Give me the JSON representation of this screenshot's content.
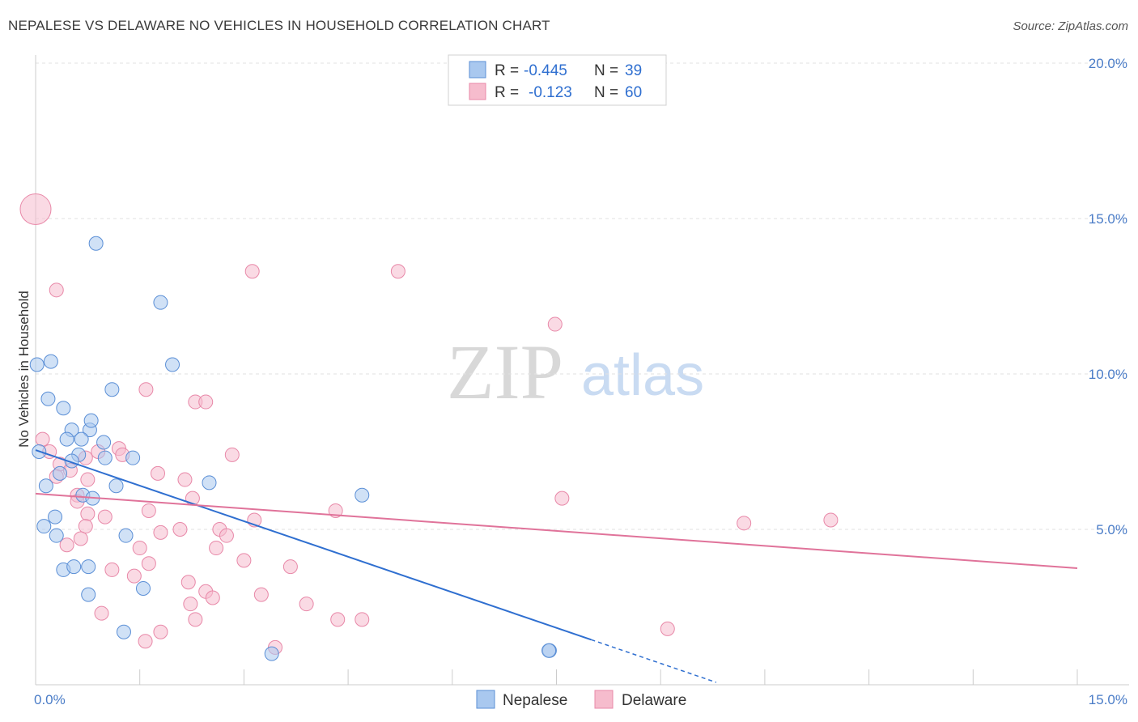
{
  "title": "NEPALESE VS DELAWARE NO VEHICLES IN HOUSEHOLD CORRELATION CHART",
  "source": "Source: ZipAtlas.com",
  "watermark": {
    "zip": "ZIP",
    "atlas": "atlas"
  },
  "colors": {
    "nepalese_fill": "#a9c8ef",
    "nepalese_stroke": "#5b8fd6",
    "nepalese_line": "#2f6fd0",
    "delaware_fill": "#f6bccd",
    "delaware_stroke": "#e888a8",
    "delaware_line": "#e0739a",
    "tick_label": "#4a7cc7"
  },
  "stats": {
    "nepalese": {
      "r_label": "R =",
      "r_value": "-0.445",
      "n_label": "N =",
      "n_value": "39"
    },
    "delaware": {
      "r_label": "R =",
      "r_value": "-0.123",
      "n_label": "N =",
      "n_value": "60"
    }
  },
  "chart_data": {
    "type": "scatter",
    "title": "NEPALESE VS DELAWARE NO VEHICLES IN HOUSEHOLD CORRELATION CHART",
    "xlabel": "",
    "ylabel": "No Vehicles in Household",
    "xlim": [
      0,
      15
    ],
    "ylim": [
      0,
      20
    ],
    "y_ticks": [
      {
        "value": 5,
        "label": "5.0%"
      },
      {
        "value": 10,
        "label": "10.0%"
      },
      {
        "value": 15,
        "label": "15.0%"
      },
      {
        "value": 20,
        "label": "20.0%"
      }
    ],
    "x_tick_labels": [
      {
        "value": 0,
        "label": "0.0%"
      },
      {
        "value": 15,
        "label": "15.0%"
      }
    ],
    "grid": true,
    "legend": [
      "Nepalese",
      "Delaware"
    ],
    "series": [
      {
        "name": "Nepalese",
        "points": [
          [
            0.02,
            10.3
          ],
          [
            0.22,
            10.4
          ],
          [
            0.05,
            7.5
          ],
          [
            0.18,
            9.2
          ],
          [
            0.4,
            8.9
          ],
          [
            0.52,
            8.2
          ],
          [
            0.78,
            8.2
          ],
          [
            0.8,
            8.5
          ],
          [
            0.45,
            7.9
          ],
          [
            0.98,
            7.8
          ],
          [
            1.1,
            9.5
          ],
          [
            0.62,
            7.4
          ],
          [
            0.52,
            7.2
          ],
          [
            1.0,
            7.3
          ],
          [
            0.35,
            6.8
          ],
          [
            0.15,
            6.4
          ],
          [
            0.68,
            6.1
          ],
          [
            1.16,
            6.4
          ],
          [
            0.82,
            6.0
          ],
          [
            0.28,
            5.4
          ],
          [
            0.12,
            5.1
          ],
          [
            0.3,
            4.8
          ],
          [
            1.3,
            4.8
          ],
          [
            0.4,
            3.7
          ],
          [
            0.55,
            3.8
          ],
          [
            0.76,
            3.8
          ],
          [
            1.55,
            3.1
          ],
          [
            0.76,
            2.9
          ],
          [
            1.27,
            1.7
          ],
          [
            0.87,
            14.2
          ],
          [
            1.8,
            12.3
          ],
          [
            1.97,
            10.3
          ],
          [
            2.5,
            6.5
          ],
          [
            4.7,
            6.1
          ],
          [
            3.4,
            1.0
          ],
          [
            7.4,
            1.1
          ],
          [
            7.39,
            1.1
          ],
          [
            0.66,
            7.9
          ],
          [
            1.4,
            7.3
          ]
        ]
      },
      {
        "name": "Delaware",
        "points": [
          [
            0.0,
            15.3
          ],
          [
            0.3,
            12.7
          ],
          [
            0.1,
            7.9
          ],
          [
            0.2,
            7.5
          ],
          [
            0.35,
            7.1
          ],
          [
            0.5,
            6.9
          ],
          [
            0.3,
            6.7
          ],
          [
            0.6,
            6.1
          ],
          [
            0.9,
            7.5
          ],
          [
            0.72,
            7.3
          ],
          [
            0.75,
            6.6
          ],
          [
            1.2,
            7.6
          ],
          [
            1.25,
            7.4
          ],
          [
            0.6,
            5.9
          ],
          [
            0.75,
            5.5
          ],
          [
            0.72,
            5.1
          ],
          [
            0.45,
            4.5
          ],
          [
            0.65,
            4.7
          ],
          [
            1.0,
            5.4
          ],
          [
            1.5,
            4.4
          ],
          [
            1.63,
            3.9
          ],
          [
            1.42,
            3.5
          ],
          [
            1.1,
            3.7
          ],
          [
            0.95,
            2.3
          ],
          [
            1.63,
            5.6
          ],
          [
            1.8,
            4.9
          ],
          [
            2.08,
            5.0
          ],
          [
            2.15,
            6.6
          ],
          [
            2.26,
            6.0
          ],
          [
            1.76,
            6.8
          ],
          [
            1.59,
            9.5
          ],
          [
            2.3,
            9.1
          ],
          [
            2.45,
            9.1
          ],
          [
            2.83,
            7.4
          ],
          [
            3.12,
            13.3
          ],
          [
            5.22,
            13.3
          ],
          [
            7.48,
            11.6
          ],
          [
            7.58,
            6.0
          ],
          [
            4.32,
            5.6
          ],
          [
            3.15,
            5.3
          ],
          [
            2.65,
            5.0
          ],
          [
            2.75,
            4.8
          ],
          [
            2.6,
            4.4
          ],
          [
            3.0,
            4.0
          ],
          [
            3.67,
            3.8
          ],
          [
            2.2,
            3.3
          ],
          [
            2.45,
            3.0
          ],
          [
            2.55,
            2.8
          ],
          [
            3.25,
            2.9
          ],
          [
            2.23,
            2.6
          ],
          [
            2.3,
            2.1
          ],
          [
            1.8,
            1.7
          ],
          [
            1.58,
            1.4
          ],
          [
            3.45,
            1.2
          ],
          [
            3.9,
            2.6
          ],
          [
            4.35,
            2.1
          ],
          [
            4.7,
            2.1
          ],
          [
            9.1,
            1.8
          ],
          [
            10.2,
            5.2
          ],
          [
            11.45,
            5.3
          ]
        ]
      }
    ],
    "trend_lines": [
      {
        "name": "Nepalese",
        "x0": 0.0,
        "y0": 7.55,
        "x1": 8.0,
        "y1": 1.45,
        "dash_to_x": 9.8
      },
      {
        "name": "Delaware",
        "x0": 0.0,
        "y0": 6.15,
        "x1": 15.0,
        "y1": 3.75
      }
    ]
  }
}
